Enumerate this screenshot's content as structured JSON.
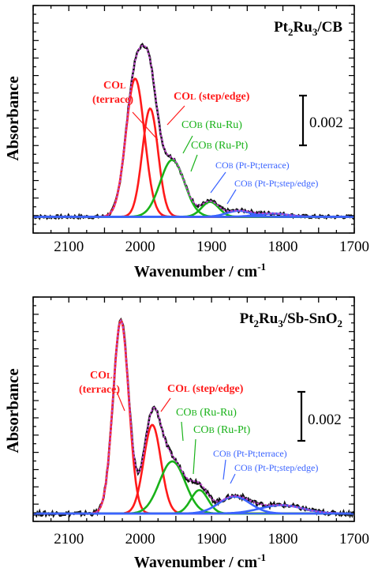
{
  "figure": {
    "x_unit_prefix": "Wavenumber / cm",
    "x_unit_suffix": "-1"
  },
  "chart_data": [
    {
      "type": "line",
      "title_parts": [
        {
          "t": "Pt",
          "sub": false
        },
        {
          "t": "2",
          "sub": true
        },
        {
          "t": "Ru",
          "sub": false
        },
        {
          "t": "3",
          "sub": true
        },
        {
          "t": "/CB",
          "sub": false
        }
      ],
      "xlabel": "Wavenumber / cm-1",
      "ylabel": "Absorbance",
      "xlim": [
        2150,
        1700
      ],
      "x_reversed": true,
      "xticks": [
        2100,
        2000,
        1900,
        1800,
        1700
      ],
      "y_units": "a.u.",
      "ylim": [
        -0.0006,
        0.0078
      ],
      "scale_bar": {
        "label": "0.002",
        "value": 0.002
      },
      "baseline": 0,
      "peaks": [
        {
          "key": "col_terrace",
          "color": "#ff1a1a",
          "center": 2007,
          "height": 0.0051,
          "width": 13
        },
        {
          "key": "col_step",
          "color": "#ff1a1a",
          "center": 1986,
          "height": 0.004,
          "width": 11
        },
        {
          "key": "cob_ruru",
          "color": "#19b219",
          "center": 1955,
          "height": 0.0021,
          "width": 17
        },
        {
          "key": "cob_rupt",
          "color": "#19b219",
          "center": 1902,
          "height": 0.00055,
          "width": 12
        },
        {
          "key": "cob_ptpt_terrace",
          "color": "#3a63ff",
          "center": 1862,
          "height": 0.00022,
          "width": 17
        },
        {
          "key": "cob_ptpt_step",
          "color": "#3a63ff",
          "center": 1815,
          "height": 0.00012,
          "width": 22
        }
      ],
      "fit_color": "#b846c9",
      "data_color": "#111111",
      "annotations": [
        {
          "lines": [
            "CO",
            "(terrace)"
          ],
          "sub": "L",
          "color": "#ff1a1a"
        },
        {
          "lines": [
            "CO",
            " (step/edge)"
          ],
          "sub": "L",
          "color": "#ff1a1a"
        },
        {
          "lines": [
            "CO",
            " (Ru-Ru)"
          ],
          "sub": "B",
          "color": "#19b219"
        },
        {
          "lines": [
            "CO",
            " (Ru-Pt)"
          ],
          "sub": "B",
          "color": "#19b219"
        },
        {
          "lines": [
            "CO",
            " (Pt-Pt;terrace)"
          ],
          "sub": "B",
          "color": "#3a63ff"
        },
        {
          "lines": [
            "CO",
            " (Pt-Pt;step/edge)"
          ],
          "sub": "B",
          "color": "#3a63ff"
        }
      ]
    },
    {
      "type": "line",
      "title_parts": [
        {
          "t": "Pt",
          "sub": false
        },
        {
          "t": "2",
          "sub": true
        },
        {
          "t": "Ru",
          "sub": false
        },
        {
          "t": "3",
          "sub": true
        },
        {
          "t": "/Sb-SnO",
          "sub": false
        },
        {
          "t": "2",
          "sub": true
        }
      ],
      "xlabel": "Wavenumber / cm-1",
      "ylabel": "Absorbance",
      "xlim": [
        2150,
        1700
      ],
      "x_reversed": true,
      "xticks": [
        2100,
        2000,
        1900,
        1800,
        1700
      ],
      "y_units": "a.u.",
      "ylim": [
        -0.0003,
        0.0083
      ],
      "scale_bar": {
        "label": "0.002",
        "value": 0.002
      },
      "baseline": 0,
      "peaks": [
        {
          "key": "col_terrace",
          "color": "#ff1a1a",
          "center": 2027,
          "height": 0.0074,
          "width": 11
        },
        {
          "key": "col_step",
          "color": "#ff1a1a",
          "center": 1983,
          "height": 0.0034,
          "width": 12
        },
        {
          "key": "cob_ruru",
          "color": "#19b219",
          "center": 1955,
          "height": 0.002,
          "width": 18
        },
        {
          "key": "cob_rupt",
          "color": "#19b219",
          "center": 1917,
          "height": 0.0009,
          "width": 12
        },
        {
          "key": "cob_ptpt_terrace",
          "color": "#3a63ff",
          "center": 1868,
          "height": 0.00065,
          "width": 22
        },
        {
          "key": "cob_ptpt_step",
          "color": "#3a63ff",
          "center": 1802,
          "height": 0.00032,
          "width": 30
        }
      ],
      "fit_color": "#b846c9",
      "data_color": "#111111",
      "annotations": [
        {
          "lines": [
            "CO",
            "(terrace)"
          ],
          "sub": "L",
          "color": "#ff1a1a"
        },
        {
          "lines": [
            "CO",
            " (step/edge)"
          ],
          "sub": "L",
          "color": "#ff1a1a"
        },
        {
          "lines": [
            "CO",
            " (Ru-Ru)"
          ],
          "sub": "B",
          "color": "#19b219"
        },
        {
          "lines": [
            "CO",
            " (Ru-Pt)"
          ],
          "sub": "B",
          "color": "#19b219"
        },
        {
          "lines": [
            "CO",
            " (Pt-Pt;terrace)"
          ],
          "sub": "B",
          "color": "#3a63ff"
        },
        {
          "lines": [
            "CO",
            " (Pt-Pt;step/edge)"
          ],
          "sub": "B",
          "color": "#3a63ff"
        }
      ]
    }
  ]
}
